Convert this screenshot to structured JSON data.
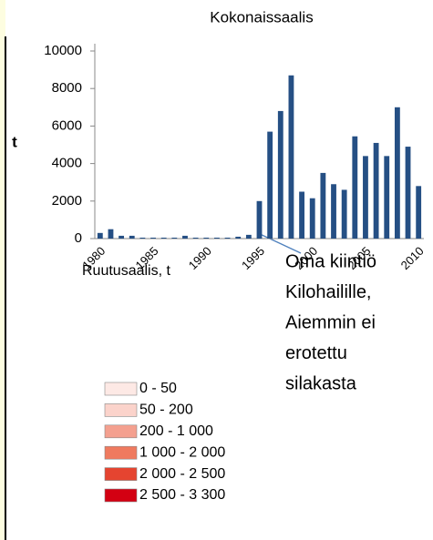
{
  "chart_data": {
    "type": "bar",
    "title": "Kokonaissaalis",
    "y_label": "t",
    "categories": [
      "1980",
      null,
      null,
      null,
      null,
      "1985",
      null,
      null,
      null,
      null,
      "1990",
      null,
      null,
      null,
      null,
      "1995",
      null,
      null,
      null,
      null,
      "2000",
      null,
      null,
      null,
      null,
      "2005",
      null,
      null,
      null,
      null,
      "2010"
    ],
    "values": [
      300,
      500,
      150,
      150,
      50,
      50,
      50,
      50,
      150,
      50,
      50,
      50,
      50,
      100,
      200,
      2000,
      5700,
      6800,
      8700,
      2500,
      2150,
      3500,
      2900,
      2600,
      5450,
      4400,
      5100,
      4400,
      7000,
      4900,
      2800
    ],
    "color": "#254f84",
    "ylim": [
      0,
      10000
    ],
    "yticks": [
      0,
      2000,
      4000,
      6000,
      8000,
      10000
    ],
    "grid": false,
    "annotation": [
      "Oma kiintiö",
      "Kilohailille,",
      "Aiemmin ei",
      "erotettu",
      "silakasta"
    ]
  },
  "map_legend": {
    "title": "Ruutusaalis, t",
    "items": [
      {
        "label": "0 - 50",
        "color": "#fde9e5"
      },
      {
        "label": "50 - 200",
        "color": "#fbd3cb"
      },
      {
        "label": "200 - 1 000",
        "color": "#f4a08f"
      },
      {
        "label": "1 000 - 2 000",
        "color": "#ef7a5f"
      },
      {
        "label": "2 000 - 2 500",
        "color": "#e54430"
      },
      {
        "label": "2 500 - 3 300",
        "color": "#d30012"
      }
    ]
  }
}
